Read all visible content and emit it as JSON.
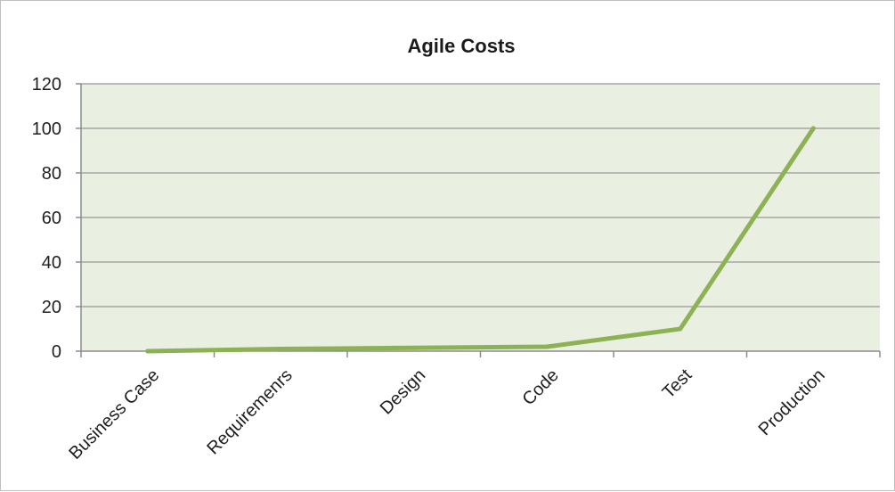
{
  "chart_data": {
    "type": "line",
    "title": "Agile Costs",
    "xlabel": "",
    "ylabel": "",
    "categories": [
      "Business Case",
      "Requiremenrs",
      "Design",
      "Code",
      "Test",
      "Production"
    ],
    "series": [
      {
        "values": [
          0,
          1,
          1.5,
          2,
          10,
          100
        ]
      }
    ],
    "ylim": [
      0,
      120
    ],
    "yticks": [
      0,
      20,
      40,
      60,
      80,
      100,
      120
    ],
    "grid": true,
    "legend": "none",
    "colors": {
      "line": "#8db255",
      "plot_background": "#eaf0e1",
      "gridline": "#a6a6a6",
      "axis": "#8c8c8c"
    }
  }
}
